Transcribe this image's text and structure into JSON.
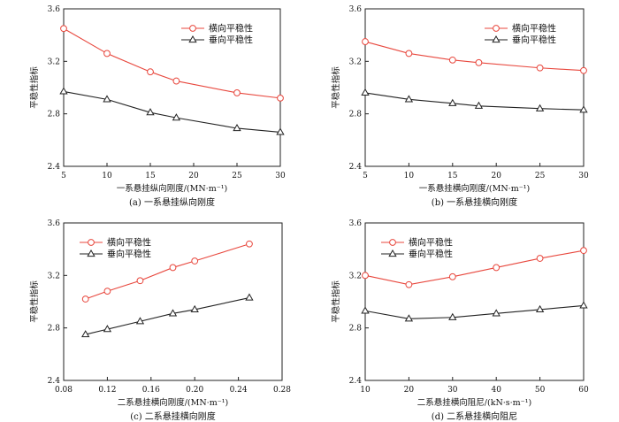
{
  "chart_data": [
    {
      "type": "line",
      "caption": "(a)   一系悬挂纵向刚度",
      "xlabel": "一系悬挂纵向刚度/(MN·m⁻¹)",
      "ylabel": "平稳性指标",
      "xlim": [
        5,
        30
      ],
      "ylim": [
        2.4,
        3.6
      ],
      "xticks": [
        5,
        10,
        15,
        20,
        25,
        30
      ],
      "xtick_labels": [
        "5",
        "10",
        "15",
        "20",
        "25",
        "30"
      ],
      "yticks": [
        2.4,
        2.8,
        3.2,
        3.6
      ],
      "ytick_labels": [
        "2.4",
        "2.8",
        "3.2",
        "3.6"
      ],
      "legend_position": "top-right",
      "series": [
        {
          "name": "横向平稳性",
          "marker": "circle",
          "color": "#e8473d",
          "x": [
            5,
            10,
            15,
            18,
            25,
            30
          ],
          "values": [
            3.45,
            3.26,
            3.12,
            3.05,
            2.96,
            2.92
          ]
        },
        {
          "name": "垂向平稳性",
          "marker": "triangle",
          "color": "#222222",
          "x": [
            5,
            10,
            15,
            18,
            25,
            30
          ],
          "values": [
            2.97,
            2.91,
            2.81,
            2.77,
            2.69,
            2.66
          ]
        }
      ]
    },
    {
      "type": "line",
      "caption": "(b)   一系悬挂横向刚度",
      "xlabel": "一系悬挂横向刚度/(MN·m⁻¹)",
      "ylabel": "平稳性指标",
      "xlim": [
        5,
        30
      ],
      "ylim": [
        2.4,
        3.6
      ],
      "xticks": [
        5,
        10,
        15,
        20,
        25,
        30
      ],
      "xtick_labels": [
        "5",
        "10",
        "15",
        "20",
        "25",
        "30"
      ],
      "yticks": [
        2.4,
        2.8,
        3.2,
        3.6
      ],
      "ytick_labels": [
        "2.4",
        "2.8",
        "3.2",
        "3.6"
      ],
      "legend_position": "top-right",
      "series": [
        {
          "name": "横向平稳性",
          "marker": "circle",
          "color": "#e8473d",
          "x": [
            5,
            10,
            15,
            18,
            25,
            30
          ],
          "values": [
            3.35,
            3.26,
            3.21,
            3.19,
            3.15,
            3.13
          ]
        },
        {
          "name": "垂向平稳性",
          "marker": "triangle",
          "color": "#222222",
          "x": [
            5,
            10,
            15,
            18,
            25,
            30
          ],
          "values": [
            2.96,
            2.91,
            2.88,
            2.86,
            2.84,
            2.83
          ]
        }
      ]
    },
    {
      "type": "line",
      "caption": "(c)   二系悬挂横向刚度",
      "xlabel": "二系悬挂横向刚度/(MN·m⁻¹)",
      "ylabel": "平稳性指标",
      "xlim": [
        0.08,
        0.28
      ],
      "ylim": [
        2.4,
        3.6
      ],
      "xticks": [
        0.08,
        0.12,
        0.16,
        0.2,
        0.24,
        0.28
      ],
      "xtick_labels": [
        "0.08",
        "0.12",
        "0.16",
        "0.20",
        "0.24",
        "0.28"
      ],
      "yticks": [
        2.4,
        2.8,
        3.2,
        3.6
      ],
      "ytick_labels": [
        "2.4",
        "2.8",
        "3.2",
        "3.6"
      ],
      "legend_position": "top-left",
      "series": [
        {
          "name": "横向平稳性",
          "marker": "circle",
          "color": "#e8473d",
          "x": [
            0.1,
            0.12,
            0.15,
            0.18,
            0.2,
            0.25
          ],
          "values": [
            3.02,
            3.08,
            3.16,
            3.26,
            3.31,
            3.44
          ]
        },
        {
          "name": "垂向平稳性",
          "marker": "triangle",
          "color": "#222222",
          "x": [
            0.1,
            0.12,
            0.15,
            0.18,
            0.2,
            0.25
          ],
          "values": [
            2.75,
            2.79,
            2.85,
            2.91,
            2.94,
            3.03
          ]
        }
      ]
    },
    {
      "type": "line",
      "caption": "(d)   二系悬挂横向阻尼",
      "xlabel": "二系悬挂横向阻尼/(kN·s·m⁻¹)",
      "ylabel": "平稳性指标",
      "xlim": [
        10,
        60
      ],
      "ylim": [
        2.4,
        3.6
      ],
      "xticks": [
        10,
        20,
        30,
        40,
        50,
        60
      ],
      "xtick_labels": [
        "10",
        "20",
        "30",
        "40",
        "50",
        "60"
      ],
      "yticks": [
        2.4,
        2.8,
        3.2,
        3.6
      ],
      "ytick_labels": [
        "2.4",
        "2.8",
        "3.2",
        "3.6"
      ],
      "legend_position": "top-left",
      "series": [
        {
          "name": "横向平稳性",
          "marker": "circle",
          "color": "#e8473d",
          "x": [
            10,
            20,
            30,
            40,
            50,
            60
          ],
          "values": [
            3.2,
            3.13,
            3.19,
            3.26,
            3.33,
            3.39
          ]
        },
        {
          "name": "垂向平稳性",
          "marker": "triangle",
          "color": "#222222",
          "x": [
            10,
            20,
            30,
            40,
            50,
            60
          ],
          "values": [
            2.93,
            2.87,
            2.88,
            2.91,
            2.94,
            2.97
          ]
        }
      ]
    }
  ]
}
